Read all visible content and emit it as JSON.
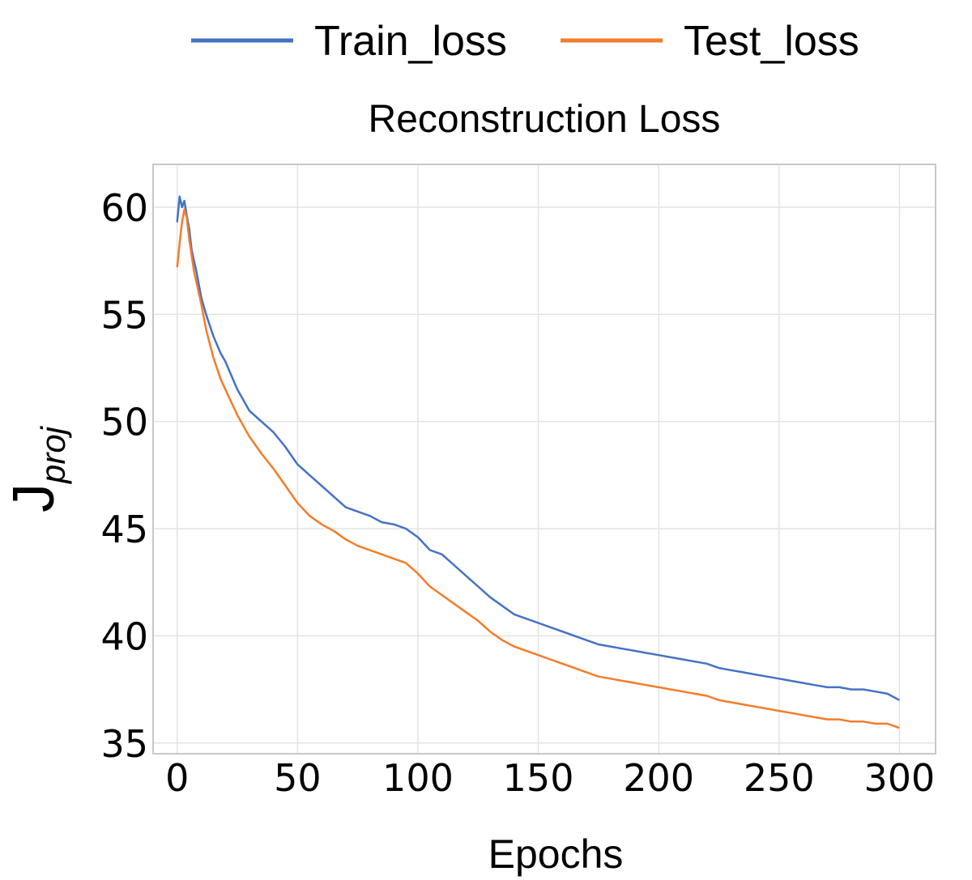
{
  "chart_data": {
    "type": "line",
    "title": "Reconstruction Loss",
    "xlabel": "Epochs",
    "ylabel": {
      "main": "J",
      "subscript": "proj"
    },
    "xlim": [
      -10,
      315
    ],
    "ylim": [
      34.5,
      62
    ],
    "xticks": [
      0,
      50,
      100,
      150,
      200,
      250,
      300
    ],
    "yticks": [
      35,
      40,
      45,
      50,
      55,
      60
    ],
    "grid": true,
    "legend_position": "top",
    "series": [
      {
        "name": "Train_loss",
        "color": "#4472c4",
        "points": [
          [
            0,
            59.3
          ],
          [
            1,
            60.5
          ],
          [
            2,
            60.0
          ],
          [
            3,
            60.3
          ],
          [
            4,
            59.6
          ],
          [
            5,
            59.0
          ],
          [
            6,
            58.0
          ],
          [
            8,
            57.0
          ],
          [
            10,
            55.8
          ],
          [
            12,
            55.0
          ],
          [
            15,
            54.0
          ],
          [
            18,
            53.2
          ],
          [
            20,
            52.8
          ],
          [
            25,
            51.5
          ],
          [
            30,
            50.5
          ],
          [
            35,
            50.0
          ],
          [
            40,
            49.5
          ],
          [
            45,
            48.8
          ],
          [
            50,
            48.0
          ],
          [
            55,
            47.5
          ],
          [
            60,
            47.0
          ],
          [
            65,
            46.5
          ],
          [
            70,
            46.0
          ],
          [
            75,
            45.8
          ],
          [
            80,
            45.6
          ],
          [
            85,
            45.3
          ],
          [
            90,
            45.2
          ],
          [
            95,
            45.0
          ],
          [
            100,
            44.6
          ],
          [
            105,
            44.0
          ],
          [
            110,
            43.8
          ],
          [
            115,
            43.3
          ],
          [
            120,
            42.8
          ],
          [
            125,
            42.3
          ],
          [
            130,
            41.8
          ],
          [
            135,
            41.4
          ],
          [
            140,
            41.0
          ],
          [
            145,
            40.8
          ],
          [
            150,
            40.6
          ],
          [
            155,
            40.4
          ],
          [
            160,
            40.2
          ],
          [
            165,
            40.0
          ],
          [
            170,
            39.8
          ],
          [
            175,
            39.6
          ],
          [
            180,
            39.5
          ],
          [
            185,
            39.4
          ],
          [
            190,
            39.3
          ],
          [
            195,
            39.2
          ],
          [
            200,
            39.1
          ],
          [
            205,
            39.0
          ],
          [
            210,
            38.9
          ],
          [
            215,
            38.8
          ],
          [
            220,
            38.7
          ],
          [
            225,
            38.5
          ],
          [
            230,
            38.4
          ],
          [
            235,
            38.3
          ],
          [
            240,
            38.2
          ],
          [
            245,
            38.1
          ],
          [
            250,
            38.0
          ],
          [
            255,
            37.9
          ],
          [
            260,
            37.8
          ],
          [
            265,
            37.7
          ],
          [
            270,
            37.6
          ],
          [
            275,
            37.6
          ],
          [
            280,
            37.5
          ],
          [
            285,
            37.5
          ],
          [
            290,
            37.4
          ],
          [
            295,
            37.3
          ],
          [
            300,
            37.0
          ]
        ]
      },
      {
        "name": "Test_loss",
        "color": "#f47c2a",
        "points": [
          [
            0,
            57.2
          ],
          [
            1,
            58.3
          ],
          [
            2,
            59.3
          ],
          [
            3,
            59.9
          ],
          [
            4,
            59.5
          ],
          [
            5,
            58.5
          ],
          [
            7,
            57.0
          ],
          [
            10,
            55.5
          ],
          [
            12,
            54.3
          ],
          [
            15,
            53.0
          ],
          [
            18,
            52.0
          ],
          [
            20,
            51.5
          ],
          [
            25,
            50.3
          ],
          [
            30,
            49.3
          ],
          [
            35,
            48.5
          ],
          [
            40,
            47.8
          ],
          [
            45,
            47.0
          ],
          [
            50,
            46.2
          ],
          [
            55,
            45.6
          ],
          [
            60,
            45.2
          ],
          [
            65,
            44.9
          ],
          [
            70,
            44.5
          ],
          [
            75,
            44.2
          ],
          [
            80,
            44.0
          ],
          [
            85,
            43.8
          ],
          [
            90,
            43.6
          ],
          [
            95,
            43.4
          ],
          [
            100,
            42.9
          ],
          [
            105,
            42.3
          ],
          [
            110,
            41.9
          ],
          [
            115,
            41.5
          ],
          [
            120,
            41.1
          ],
          [
            125,
            40.7
          ],
          [
            130,
            40.2
          ],
          [
            135,
            39.8
          ],
          [
            140,
            39.5
          ],
          [
            145,
            39.3
          ],
          [
            150,
            39.1
          ],
          [
            155,
            38.9
          ],
          [
            160,
            38.7
          ],
          [
            165,
            38.5
          ],
          [
            170,
            38.3
          ],
          [
            175,
            38.1
          ],
          [
            180,
            38.0
          ],
          [
            185,
            37.9
          ],
          [
            190,
            37.8
          ],
          [
            195,
            37.7
          ],
          [
            200,
            37.6
          ],
          [
            205,
            37.5
          ],
          [
            210,
            37.4
          ],
          [
            215,
            37.3
          ],
          [
            220,
            37.2
          ],
          [
            225,
            37.0
          ],
          [
            230,
            36.9
          ],
          [
            235,
            36.8
          ],
          [
            240,
            36.7
          ],
          [
            245,
            36.6
          ],
          [
            250,
            36.5
          ],
          [
            255,
            36.4
          ],
          [
            260,
            36.3
          ],
          [
            265,
            36.2
          ],
          [
            270,
            36.1
          ],
          [
            275,
            36.1
          ],
          [
            280,
            36.0
          ],
          [
            285,
            36.0
          ],
          [
            290,
            35.9
          ],
          [
            295,
            35.9
          ],
          [
            300,
            35.7
          ]
        ]
      }
    ]
  }
}
